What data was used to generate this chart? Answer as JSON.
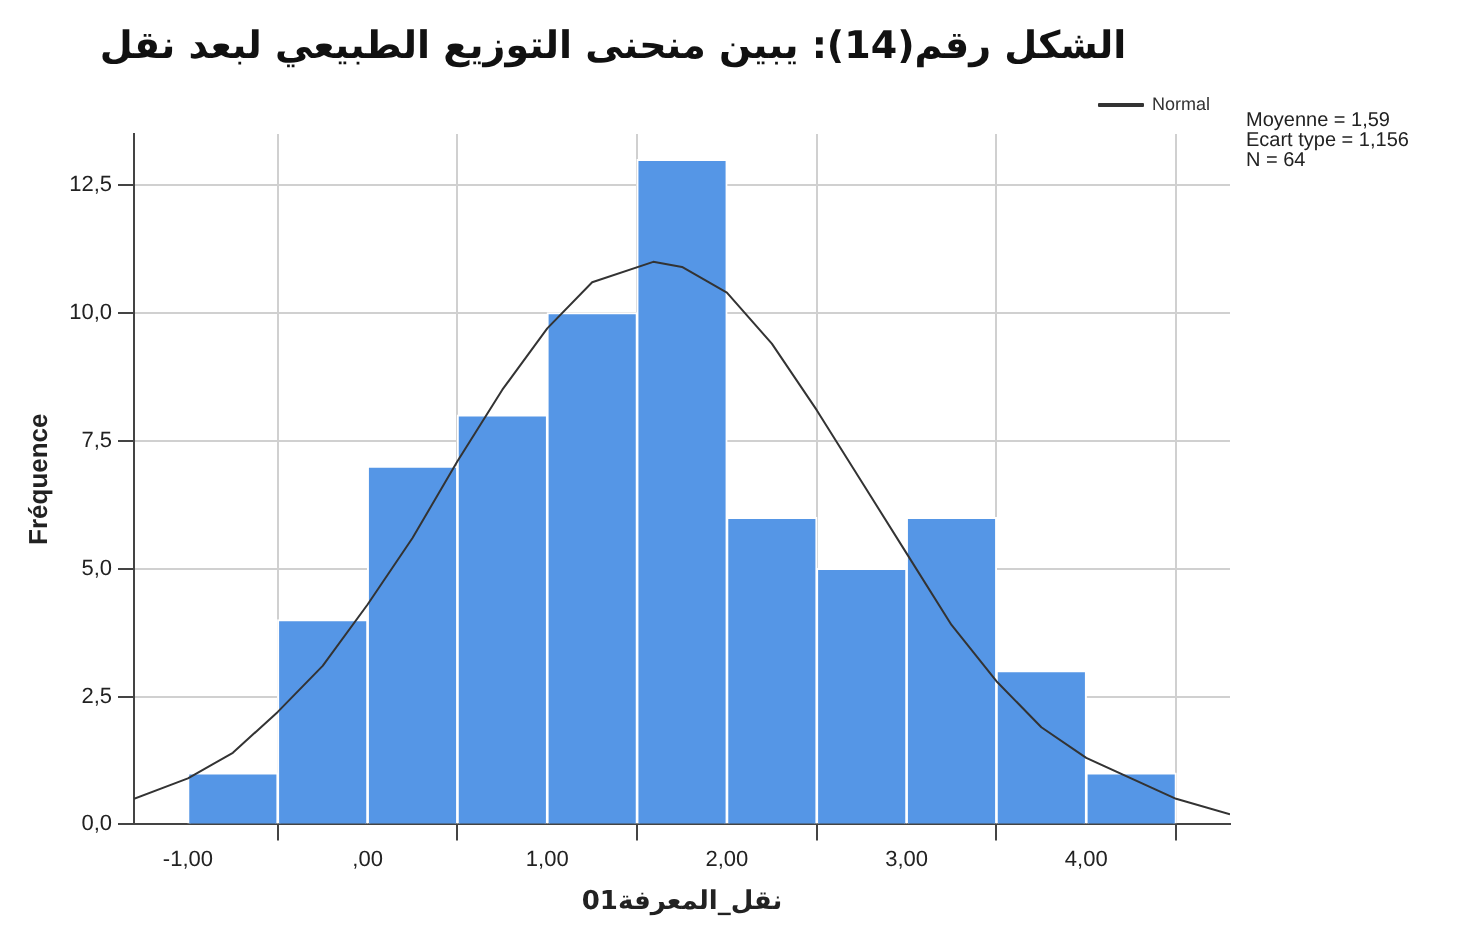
{
  "chart_data": {
    "type": "histogram",
    "title": "الشكل رقم(14): يبين منحنى التوزيع الطبيعي لبعد نقل",
    "xlabel": "نقل_المعرفة01",
    "ylabel": "Fréquence",
    "bins": [
      -1,
      -0.5,
      0,
      0.5,
      1,
      1.5,
      2,
      2.5,
      3,
      3.5,
      4,
      4.5
    ],
    "values": [
      1,
      4,
      7,
      8,
      10,
      13,
      6,
      5,
      6,
      3,
      1
    ],
    "color": "#5596e6",
    "series": [
      {
        "type": "line",
        "name": "Normal",
        "color": "#333333",
        "x": [
          -1.3,
          -1,
          -0.75,
          -0.5,
          -0.25,
          0,
          0.25,
          0.5,
          0.75,
          1,
          1.25,
          1.59,
          1.75,
          2,
          2.25,
          2.5,
          2.75,
          3,
          3.25,
          3.5,
          3.75,
          4,
          4.5,
          4.8
        ],
        "values": [
          0.5,
          0.9,
          1.4,
          2.2,
          3.1,
          4.3,
          5.6,
          7.1,
          8.5,
          9.7,
          10.6,
          11.0,
          10.9,
          10.4,
          9.4,
          8.1,
          6.7,
          5.3,
          3.9,
          2.8,
          1.9,
          1.3,
          0.5,
          0.2
        ]
      }
    ],
    "xlim": [
      -1.3,
      4.8
    ],
    "xticks": [
      {
        "value": -1,
        "label": "-1,00"
      },
      {
        "value": 0,
        "label": ",00"
      },
      {
        "value": 1,
        "label": "1,00"
      },
      {
        "value": 2,
        "label": "2,00"
      },
      {
        "value": 3,
        "label": "3,00"
      },
      {
        "value": 4,
        "label": "4,00"
      }
    ],
    "ylim": [
      0,
      13.5
    ],
    "yticks": [
      {
        "value": 0,
        "label": "0,0"
      },
      {
        "value": 2.5,
        "label": "2,5"
      },
      {
        "value": 5,
        "label": "5,0"
      },
      {
        "value": 7.5,
        "label": "7,5"
      },
      {
        "value": 10,
        "label": "10,0"
      },
      {
        "value": 12.5,
        "label": "12,5"
      }
    ],
    "grid": true,
    "legend": "top right",
    "marker": "none",
    "annotations": [
      "Moyenne = 1,59",
      "Ecart type = 1,156",
      "N = 64"
    ]
  }
}
